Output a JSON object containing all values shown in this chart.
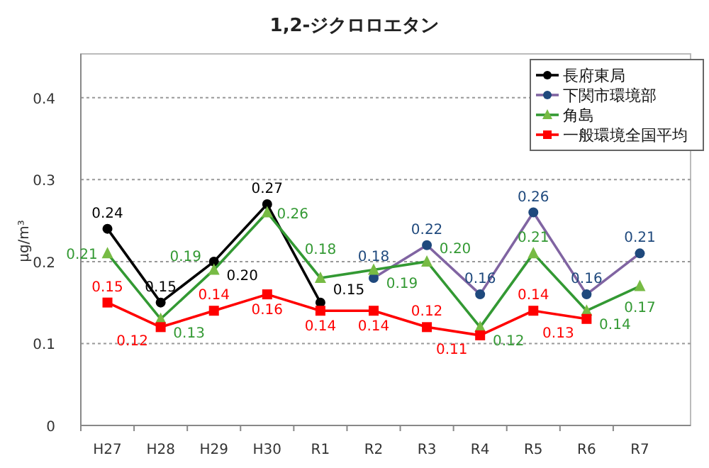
{
  "chart_data": {
    "type": "line",
    "title": "1,2-ジクロロエタン",
    "ylabel": "μg/m³",
    "categories": [
      "H27",
      "H28",
      "H29",
      "H30",
      "R1",
      "R2",
      "R3",
      "R4",
      "R5",
      "R6",
      "R7"
    ],
    "series": [
      {
        "name": "長府東局",
        "color": "#000000",
        "marker": "circle",
        "values": [
          0.24,
          0.15,
          0.2,
          0.27,
          0.15,
          null,
          null,
          null,
          null,
          null,
          null
        ],
        "value_labels": [
          "0.24",
          "0.15",
          "0.20",
          "0.27",
          "0.15",
          null,
          null,
          null,
          null,
          null,
          null
        ]
      },
      {
        "name": "下関市環境部",
        "color": "#8064a2",
        "colors": [
          null,
          null,
          null,
          null,
          null,
          "#1f497d",
          "#1f497d",
          "#1f497d",
          "#1f497d",
          "#1f497d",
          "#1f497d"
        ],
        "marker": "circle",
        "values": [
          null,
          null,
          null,
          null,
          null,
          0.18,
          0.22,
          0.16,
          0.26,
          0.16,
          0.21
        ],
        "value_labels": [
          null,
          null,
          null,
          null,
          null,
          "0.18",
          "0.22",
          "0.16",
          "0.26",
          "0.16",
          "0.21"
        ]
      },
      {
        "name": "角島",
        "color": "#339933",
        "colors": [
          "#77bb44",
          "#77bb44",
          "#77bb44",
          "#77bb44",
          "#77bb44",
          "#77bb44",
          "#77bb44",
          "#77bb44",
          "#77bb44",
          "#77bb44",
          "#77bb44"
        ],
        "marker": "triangle",
        "values": [
          0.21,
          0.13,
          0.19,
          0.26,
          0.18,
          0.19,
          0.2,
          0.12,
          0.21,
          0.14,
          0.17
        ],
        "value_labels": [
          "0.21",
          "0.13",
          "0.19",
          "0.26",
          "0.18",
          "0.19",
          "0.20",
          "0.12",
          "0.21",
          "0.14",
          "0.17"
        ]
      },
      {
        "name": "一般環境全国平均",
        "color": "#ff0000",
        "marker": "square",
        "values": [
          0.15,
          0.12,
          0.14,
          0.16,
          0.14,
          0.14,
          0.12,
          0.11,
          0.14,
          0.13,
          null
        ],
        "value_labels": [
          "0.15",
          "0.12",
          "0.14",
          "0.16",
          "0.14",
          "0.14",
          "0.12",
          "0.11",
          "0.14",
          "0.13",
          null
        ]
      }
    ],
    "ylim": [
      0,
      0.45
    ],
    "yticks": [
      0,
      0.1,
      0.2,
      0.3,
      0.4
    ],
    "grid": "y",
    "legend": "top right"
  }
}
